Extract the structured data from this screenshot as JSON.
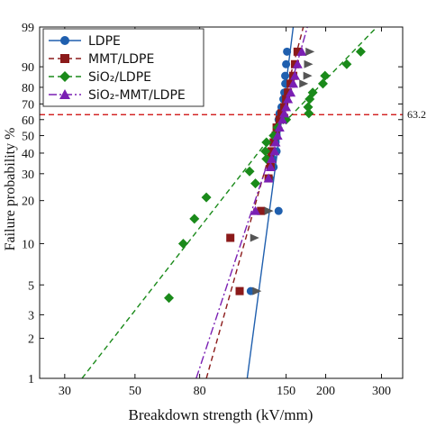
{
  "chart_data": {
    "type": "scatter",
    "subtype": "weibull-probability-plot",
    "xlabel": "Breakdown strength (kV/mm)",
    "ylabel": "Failure probability %",
    "x_scale": "log",
    "y_scale": "weibull",
    "xlim": [
      25,
      350
    ],
    "ylim": [
      1,
      99
    ],
    "x_ticks": [
      30,
      50,
      80,
      150,
      200,
      300
    ],
    "y_ticks": [
      1,
      2,
      3,
      5,
      10,
      20,
      30,
      40,
      50,
      60,
      70,
      80,
      90,
      99
    ],
    "reference_line": {
      "y": 63.2,
      "label": "63.2",
      "color": "#cc0000"
    },
    "legend_position": "top-left",
    "series": [
      {
        "name": "LDPE",
        "color": "#1f5fae",
        "marker": "circle",
        "line_style": "solid",
        "fit": [
          [
            113,
            1
          ],
          [
            143,
            50
          ],
          [
            158,
            99
          ]
        ],
        "points": [
          [
            116,
            4.5
          ],
          [
            142,
            17
          ],
          [
            133,
            28
          ],
          [
            137,
            33
          ],
          [
            136,
            37
          ],
          [
            140,
            41
          ],
          [
            139,
            46
          ],
          [
            140,
            50
          ],
          [
            141,
            55
          ],
          [
            142,
            60
          ],
          [
            143,
            64
          ],
          [
            145,
            68
          ],
          [
            147,
            73
          ],
          [
            148,
            77
          ],
          [
            149,
            82
          ],
          [
            149,
            86
          ],
          [
            150,
            91
          ],
          [
            151,
            95
          ]
        ]
      },
      {
        "name": "MMT/LDPE",
        "color": "#8b1a1a",
        "marker": "square",
        "line_style": "dash",
        "fit": [
          [
            84,
            1
          ],
          [
            138,
            50
          ],
          [
            170,
            99
          ]
        ],
        "points": [
          [
            107,
            4.5
          ],
          [
            100,
            11
          ],
          [
            125,
            17
          ],
          [
            132,
            28
          ],
          [
            134,
            33
          ],
          [
            133,
            37
          ],
          [
            135,
            41
          ],
          [
            137,
            46
          ],
          [
            139,
            50
          ],
          [
            140,
            55
          ],
          [
            143,
            60
          ],
          [
            145,
            64
          ],
          [
            148,
            68
          ],
          [
            150,
            73
          ],
          [
            152,
            77
          ],
          [
            155,
            82
          ],
          [
            158,
            86
          ],
          [
            160,
            91
          ],
          [
            163,
            95
          ]
        ]
      },
      {
        "name": "SiO₂/LDPE",
        "color": "#1a8a1a",
        "marker": "diamond",
        "line_style": "dash",
        "fit": [
          [
            34,
            1
          ],
          [
            135,
            50
          ],
          [
            290,
            99
          ]
        ],
        "points": [
          [
            64,
            4
          ],
          [
            71,
            10
          ],
          [
            77,
            15
          ],
          [
            84,
            21
          ],
          [
            120,
            26
          ],
          [
            115,
            31
          ],
          [
            130,
            37
          ],
          [
            129,
            41
          ],
          [
            130,
            46
          ],
          [
            137,
            50
          ],
          [
            141,
            55
          ],
          [
            150,
            60
          ],
          [
            177,
            64
          ],
          [
            176,
            68
          ],
          [
            178,
            73
          ],
          [
            182,
            77
          ],
          [
            196,
            82
          ],
          [
            199,
            86
          ],
          [
            233,
            91
          ],
          [
            258,
            95
          ]
        ]
      },
      {
        "name": "SiO₂-MMT/LDPE",
        "color": "#7a1fb3",
        "marker": "triangle",
        "line_style": "dashdot",
        "fit": [
          [
            78,
            1
          ],
          [
            140,
            50
          ],
          [
            175,
            99
          ]
        ],
        "points": [
          [
            120,
            17
          ],
          [
            132,
            28
          ],
          [
            134,
            33
          ],
          [
            135,
            37
          ],
          [
            138,
            41
          ],
          [
            139,
            46
          ],
          [
            141,
            50
          ],
          [
            143,
            55
          ],
          [
            146,
            60
          ],
          [
            148,
            64
          ],
          [
            150,
            68
          ],
          [
            152,
            73
          ],
          [
            155,
            77
          ],
          [
            158,
            82
          ],
          [
            160,
            86
          ],
          [
            163,
            91
          ],
          [
            168,
            95
          ]
        ]
      }
    ],
    "extra_markers": {
      "color": "#555555",
      "marker": "right-triangle",
      "points": [
        [
          121,
          4.5
        ],
        [
          119,
          11
        ],
        [
          132,
          17
        ],
        [
          170,
          82
        ],
        [
          175,
          86
        ],
        [
          176,
          91
        ],
        [
          178,
          95
        ]
      ]
    }
  }
}
